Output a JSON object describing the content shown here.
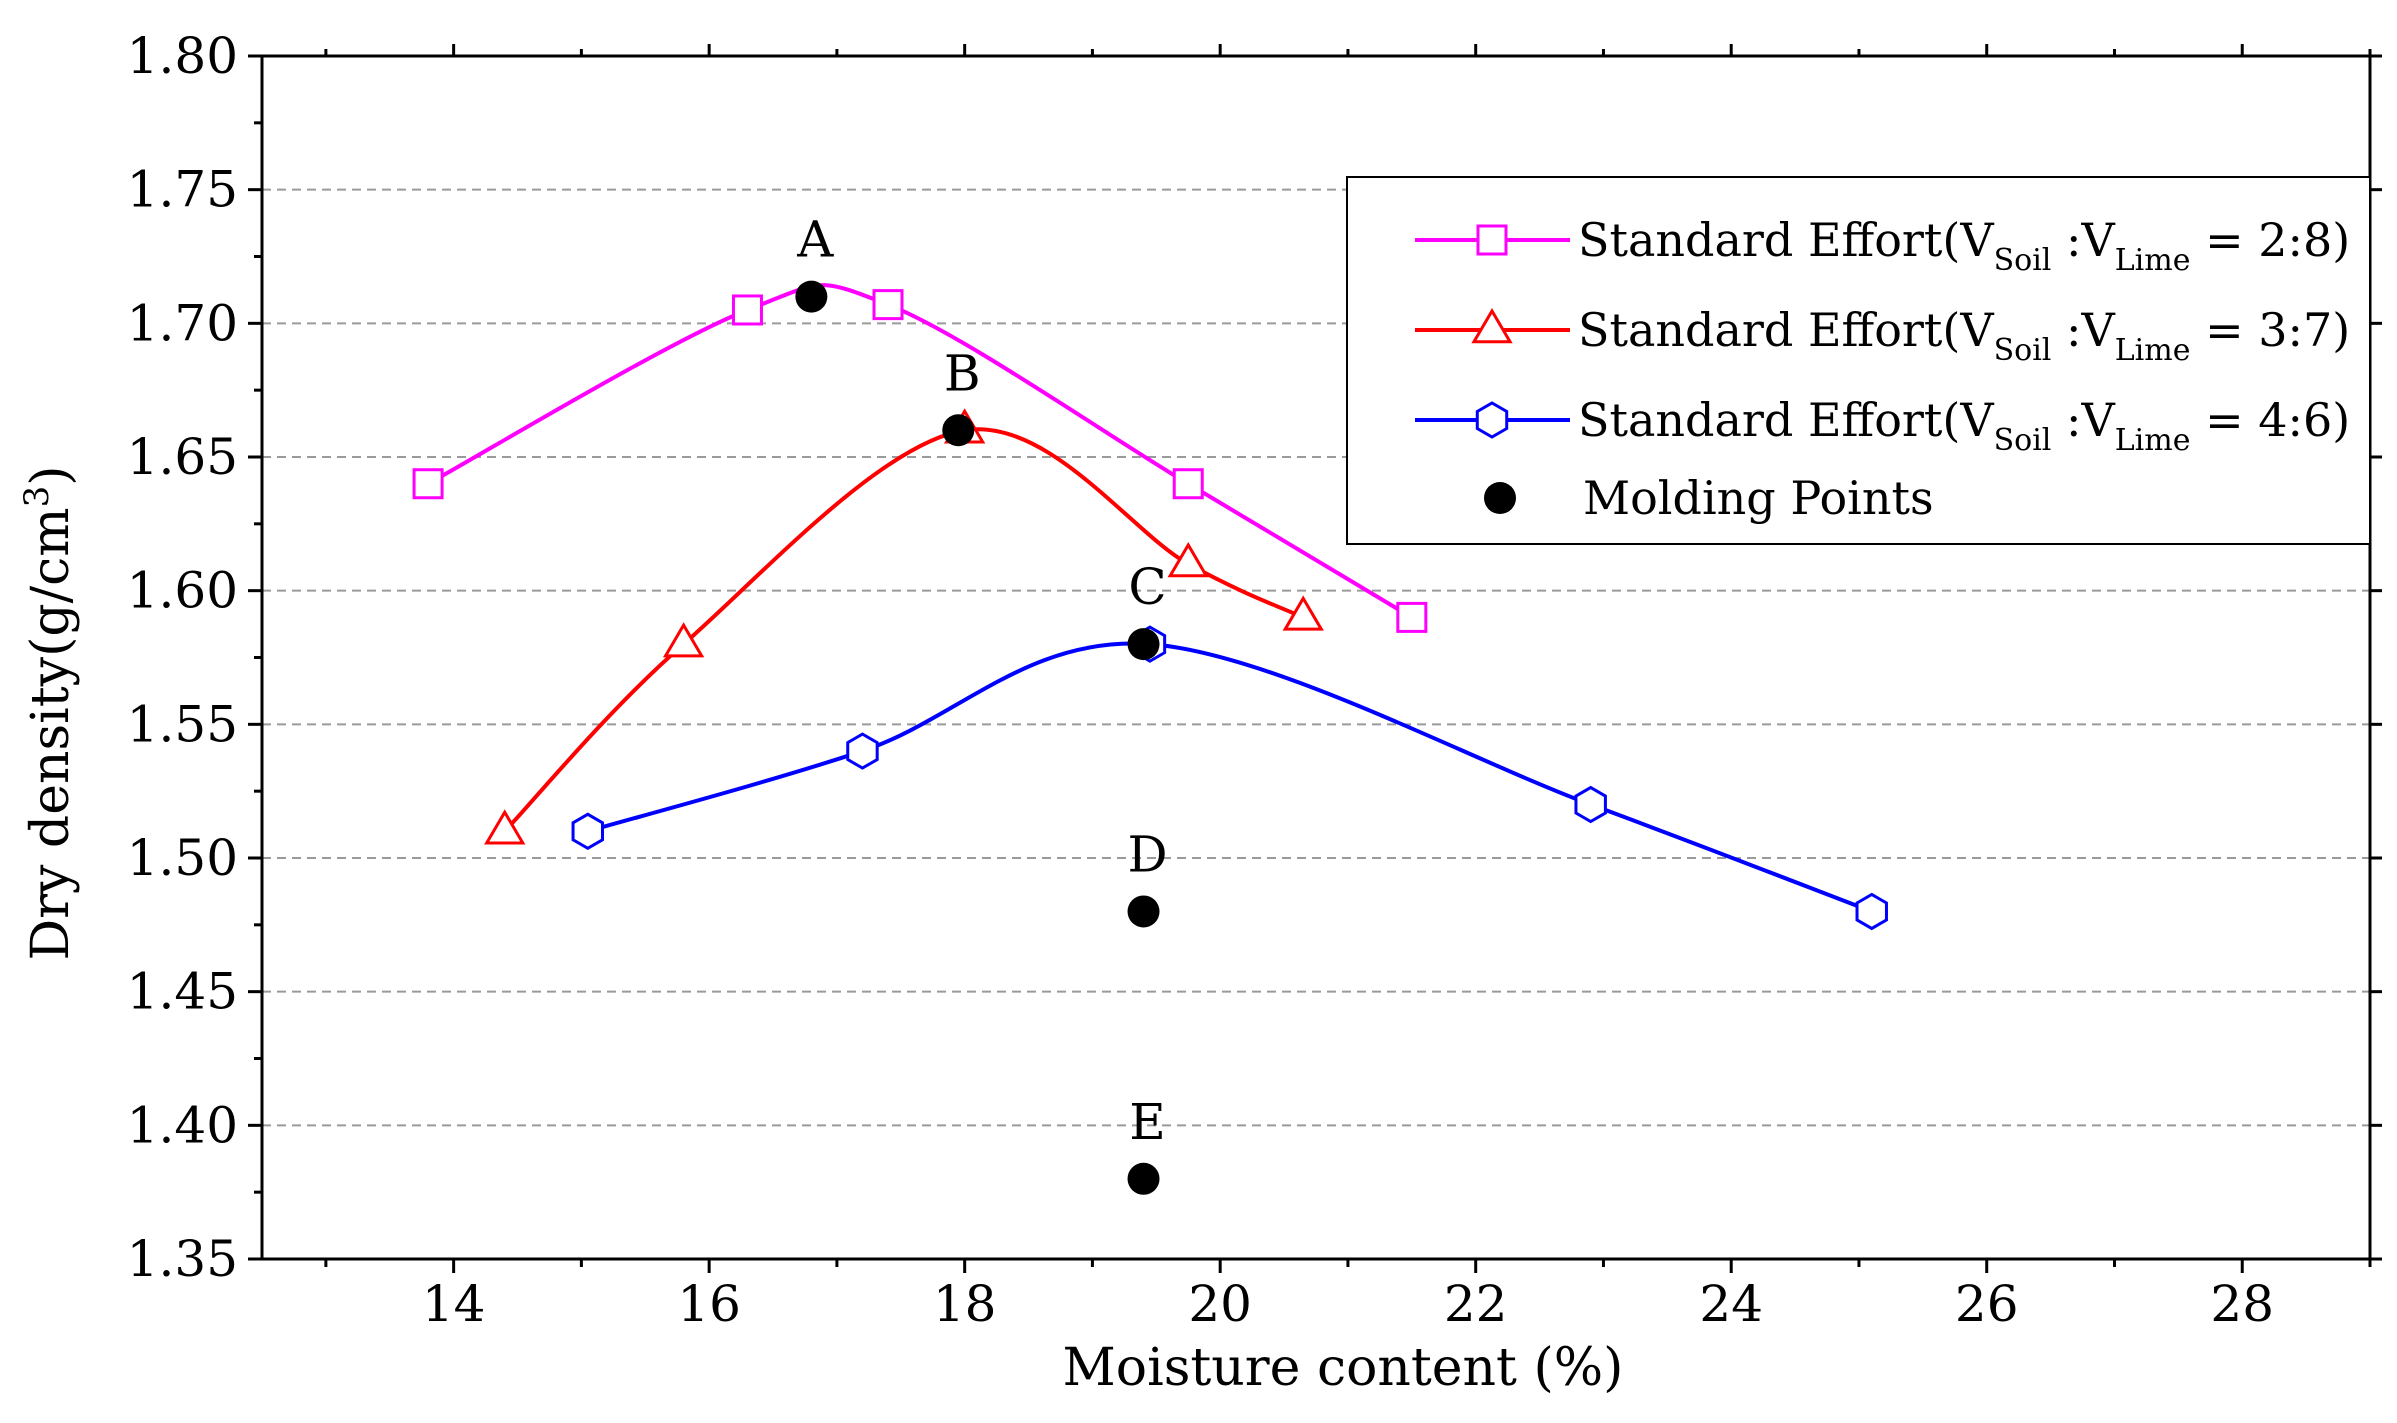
{
  "chart_data": {
    "type": "line",
    "title": "",
    "xlabel": "Moisture content (%)",
    "ylabel": "Dry density(g/cm3)",
    "ylabel_main": "Dry density(g/cm",
    "ylabel_sup": "3",
    "ylabel_close": ")",
    "xlim": [
      12.5,
      29
    ],
    "ylim": [
      1.35,
      1.8
    ],
    "xticks": [
      14,
      16,
      18,
      20,
      22,
      24,
      26,
      28
    ],
    "yticks": [
      1.35,
      1.4,
      1.45,
      1.5,
      1.55,
      1.6,
      1.65,
      1.7,
      1.75,
      1.8
    ],
    "ytick_labels": [
      "1.35",
      "1.40",
      "1.45",
      "1.50",
      "1.55",
      "1.60",
      "1.65",
      "1.70",
      "1.75",
      "1.80"
    ],
    "grid": "horizontal dashed",
    "legend_position": "top-right",
    "series": [
      {
        "id": "s28",
        "name": "Standard Effort(VSoil :VLime = 2:8)",
        "legend_parts": {
          "pre": "Standard Effort(V",
          "sub1": "Soil",
          "mid": " :V",
          "sub2": "Lime",
          "post": " = 2:8)"
        },
        "color": "#ff00ff",
        "marker": "square",
        "x": [
          13.8,
          16.3,
          17.4,
          19.75,
          21.5
        ],
        "y": [
          1.64,
          1.705,
          1.707,
          1.64,
          1.59
        ]
      },
      {
        "id": "s37",
        "name": "Standard Effort(VSoil :VLime = 3:7)",
        "legend_parts": {
          "pre": "Standard Effort(V",
          "sub1": "Soil",
          "mid": " :V",
          "sub2": "Lime",
          "post": " = 3:7)"
        },
        "color": "#ff0000",
        "marker": "triangle",
        "x": [
          14.4,
          15.8,
          18.0,
          19.75,
          20.65
        ],
        "y": [
          1.51,
          1.58,
          1.66,
          1.61,
          1.59
        ]
      },
      {
        "id": "s46",
        "name": "Standard Effort(VSoil :VLime = 4:6)",
        "legend_parts": {
          "pre": "Standard Effort(V",
          "sub1": "Soil",
          "mid": " :V",
          "sub2": "Lime",
          "post": " = 4:6)"
        },
        "color": "#0000ff",
        "marker": "hexagon",
        "x": [
          15.05,
          17.2,
          19.45,
          22.9,
          25.1
        ],
        "y": [
          1.51,
          1.54,
          1.58,
          1.52,
          1.48
        ]
      }
    ],
    "molding_points": {
      "name": "Molding Points",
      "color": "#000000",
      "points": [
        {
          "label": "A",
          "x": 16.8,
          "y": 1.71
        },
        {
          "label": "B",
          "x": 17.95,
          "y": 1.66
        },
        {
          "label": "C",
          "x": 19.4,
          "y": 1.58
        },
        {
          "label": "D",
          "x": 19.4,
          "y": 1.48
        },
        {
          "label": "E",
          "x": 19.4,
          "y": 1.38
        }
      ]
    }
  }
}
